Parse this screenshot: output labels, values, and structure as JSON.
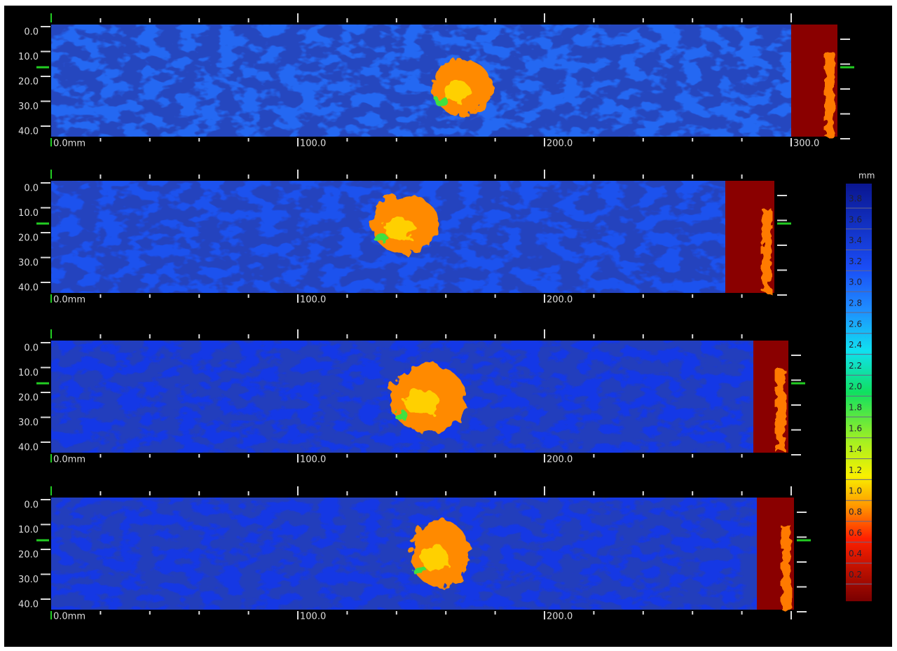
{
  "panels": [
    {
      "y_labels": [
        "0.0",
        "10.0",
        "20.0",
        "30.0",
        "40.0"
      ],
      "x_labels": [
        "0.0mm",
        "100.0",
        "200.0",
        "300.0"
      ]
    },
    {
      "y_labels": [
        "0.0",
        "10.0",
        "20.0",
        "30.0",
        "40.0"
      ],
      "x_labels": [
        "0.0mm",
        "100.0",
        "200.0"
      ]
    },
    {
      "y_labels": [
        "0.0",
        "10.0",
        "20.0",
        "30.0",
        "40.0"
      ],
      "x_labels": [
        "0.0mm",
        "100.0",
        "200.0"
      ]
    },
    {
      "y_labels": [
        "0.0",
        "10.0",
        "20.0",
        "30.0",
        "40.0"
      ],
      "x_labels": [
        "0.0mm",
        "100.0",
        "200.0"
      ]
    }
  ],
  "colorbar": {
    "unit": "mm",
    "labels": [
      "3.8",
      "3.6",
      "3.4",
      "3.2",
      "3.0",
      "2.8",
      "2.6",
      "2.4",
      "2.2",
      "2.0",
      "1.8",
      "1.6",
      "1.4",
      "1.2",
      "1.0",
      "0.8",
      "0.6",
      "0.4",
      "0.2"
    ]
  }
}
